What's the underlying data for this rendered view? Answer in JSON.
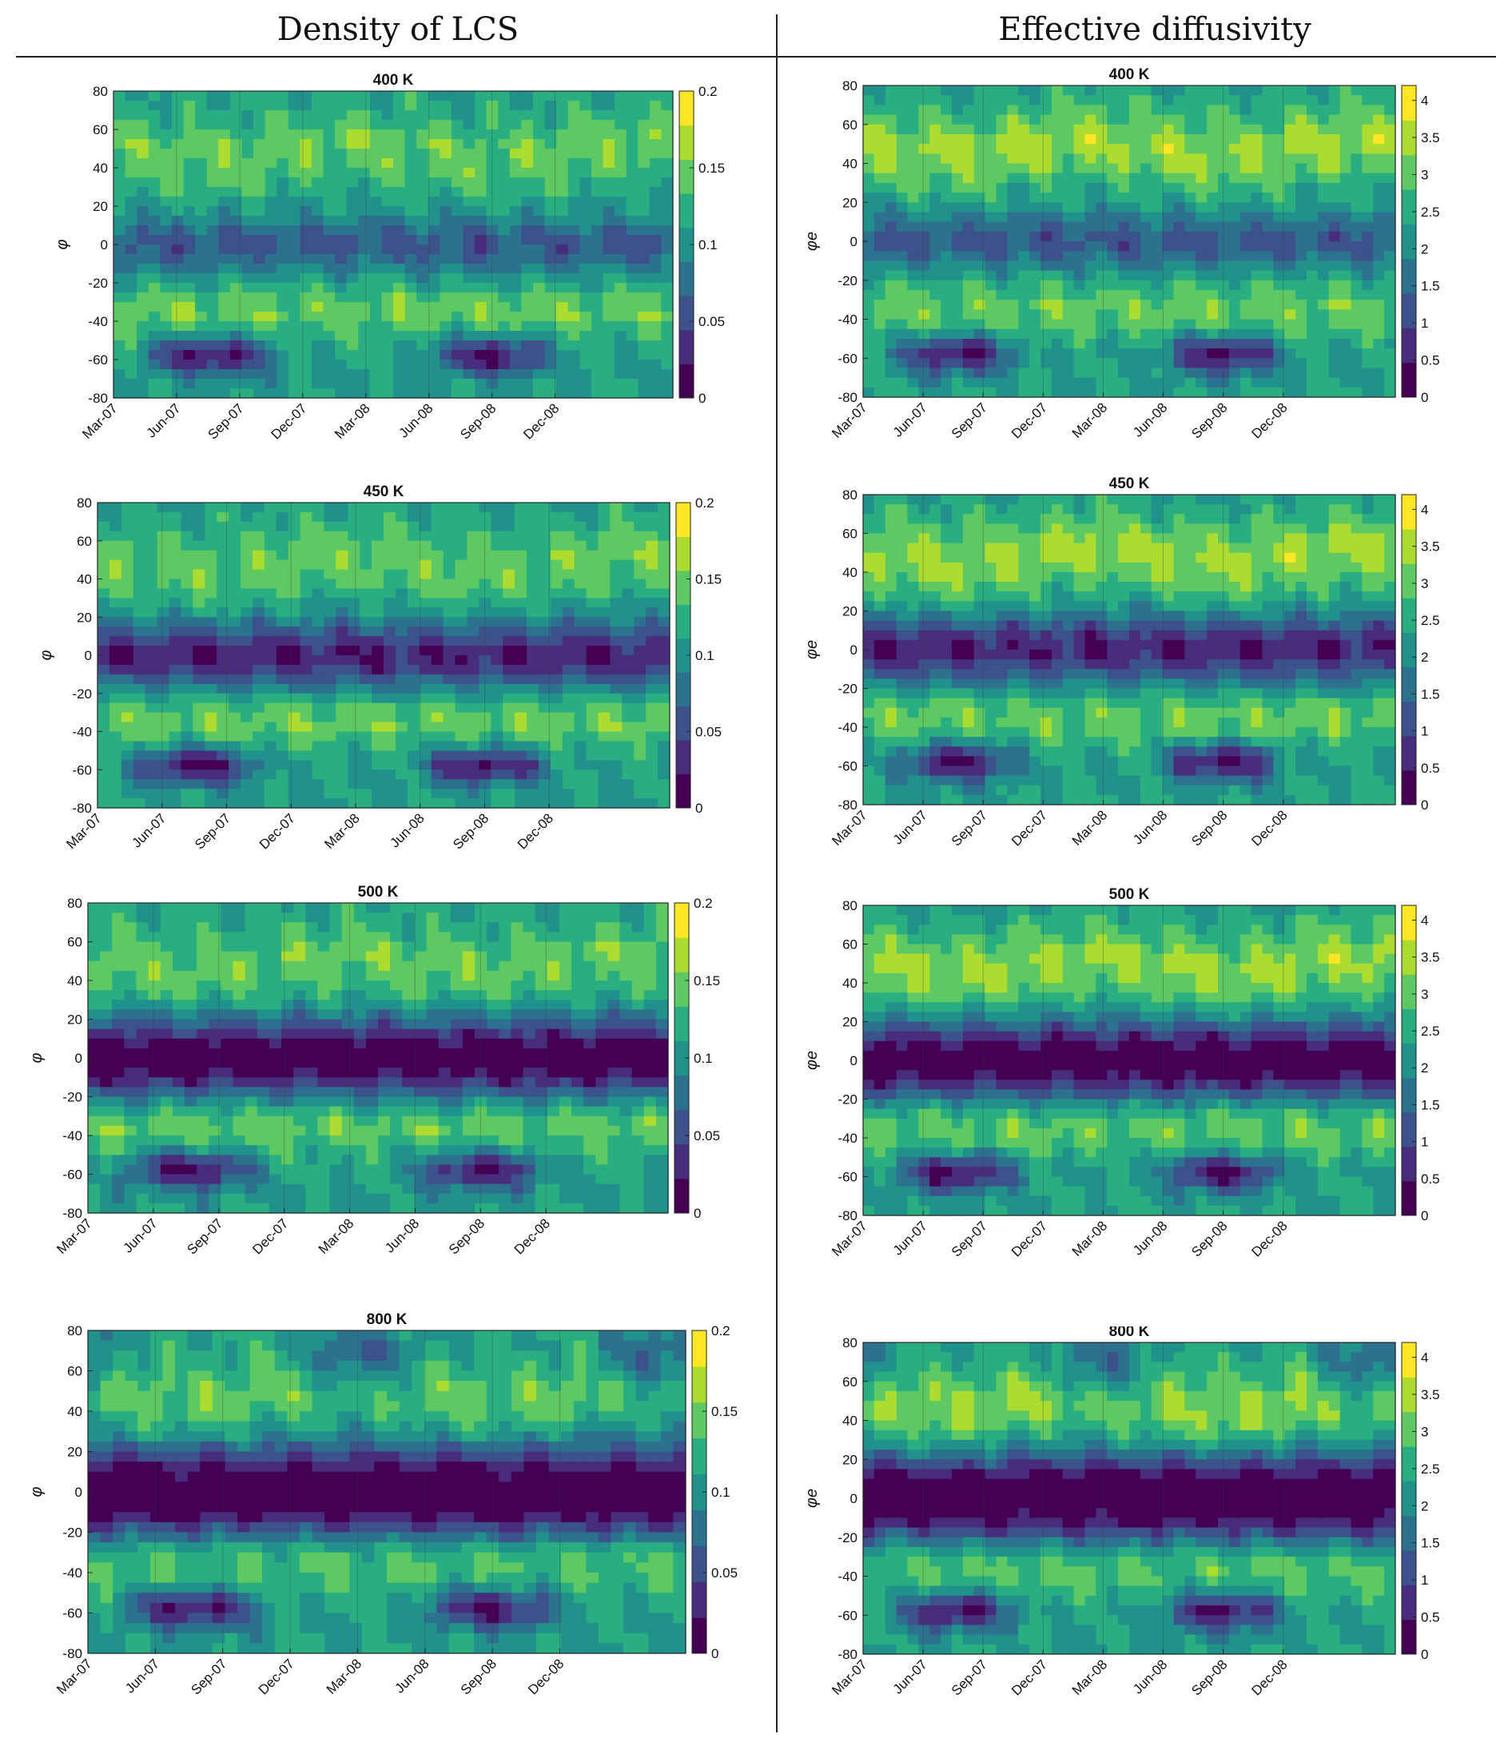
{
  "titles": {
    "left": "Density of LCS",
    "right": "Effective diffusivity"
  },
  "chart_data": [
    {
      "type": "heatmap",
      "column": "left",
      "title": "400 K",
      "ylabel": "φ",
      "x_ticks": [
        "Mar-07",
        "Jun-07",
        "Sep-07",
        "Dec-07",
        "Mar-08",
        "Jun-08",
        "Sep-08",
        "Dec-08"
      ],
      "y_ticks": [
        -80,
        -60,
        -40,
        -20,
        0,
        20,
        40,
        60,
        80
      ],
      "ylim": [
        -80,
        80
      ],
      "colorbar": {
        "ticks": [
          "0",
          "0.05",
          "0.1",
          "0.15",
          "0.2"
        ],
        "min": 0,
        "max": 0.2
      },
      "colormap": [
        "#440154",
        "#472d7b",
        "#3b528b",
        "#2c728e",
        "#21918c",
        "#28ae80",
        "#5ec962",
        "#addc30",
        "#fde725"
      ]
    },
    {
      "type": "heatmap",
      "column": "right",
      "title": "400 K",
      "ylabel": "φe",
      "x_ticks": [
        "Mar-07",
        "Jun-07",
        "Sep-07",
        "Dec-07",
        "Mar-08",
        "Jun-08",
        "Sep-08",
        "Dec-08"
      ],
      "y_ticks": [
        -80,
        -60,
        -40,
        -20,
        0,
        20,
        40,
        60,
        80
      ],
      "ylim": [
        -80,
        80
      ],
      "colorbar": {
        "ticks": [
          "0",
          "0.5",
          "1",
          "1.5",
          "2",
          "2.5",
          "3",
          "3.5",
          "4"
        ],
        "min": 0,
        "max": 4.2
      },
      "colormap": [
        "#440154",
        "#472d7b",
        "#3b528b",
        "#2c728e",
        "#21918c",
        "#28ae80",
        "#5ec962",
        "#addc30",
        "#fde725"
      ]
    },
    {
      "type": "heatmap",
      "column": "left",
      "title": "450 K",
      "ylabel": "φ",
      "x_ticks": [
        "Mar-07",
        "Jun-07",
        "Sep-07",
        "Dec-07",
        "Mar-08",
        "Jun-08",
        "Sep-08",
        "Dec-08"
      ],
      "y_ticks": [
        -80,
        -60,
        -40,
        -20,
        0,
        20,
        40,
        60,
        80
      ],
      "ylim": [
        -80,
        80
      ],
      "colorbar": {
        "ticks": [
          "0",
          "0.05",
          "0.1",
          "0.15",
          "0.2"
        ],
        "min": 0,
        "max": 0.2
      },
      "colormap": [
        "#440154",
        "#472d7b",
        "#3b528b",
        "#2c728e",
        "#21918c",
        "#28ae80",
        "#5ec962",
        "#addc30",
        "#fde725"
      ]
    },
    {
      "type": "heatmap",
      "column": "right",
      "title": "450 K",
      "ylabel": "φe",
      "x_ticks": [
        "Mar-07",
        "Jun-07",
        "Sep-07",
        "Dec-07",
        "Mar-08",
        "Jun-08",
        "Sep-08",
        "Dec-08"
      ],
      "y_ticks": [
        -80,
        -60,
        -40,
        -20,
        0,
        20,
        40,
        60,
        80
      ],
      "ylim": [
        -80,
        80
      ],
      "colorbar": {
        "ticks": [
          "0",
          "0.5",
          "1",
          "1.5",
          "2",
          "2.5",
          "3",
          "3.5",
          "4"
        ],
        "min": 0,
        "max": 4.2
      },
      "colormap": [
        "#440154",
        "#472d7b",
        "#3b528b",
        "#2c728e",
        "#21918c",
        "#28ae80",
        "#5ec962",
        "#addc30",
        "#fde725"
      ]
    },
    {
      "type": "heatmap",
      "column": "left",
      "title": "500 K",
      "ylabel": "φ",
      "x_ticks": [
        "Mar-07",
        "Jun-07",
        "Sep-07",
        "Dec-07",
        "Mar-08",
        "Jun-08",
        "Sep-08",
        "Dec-08"
      ],
      "y_ticks": [
        -80,
        -60,
        -40,
        -20,
        0,
        20,
        40,
        60,
        80
      ],
      "ylim": [
        -80,
        80
      ],
      "colorbar": {
        "ticks": [
          "0",
          "0.05",
          "0.1",
          "0.15",
          "0.2"
        ],
        "min": 0,
        "max": 0.2
      },
      "colormap": [
        "#440154",
        "#472d7b",
        "#3b528b",
        "#2c728e",
        "#21918c",
        "#28ae80",
        "#5ec962",
        "#addc30",
        "#fde725"
      ]
    },
    {
      "type": "heatmap",
      "column": "right",
      "title": "500 K",
      "ylabel": "φe",
      "x_ticks": [
        "Mar-07",
        "Jun-07",
        "Sep-07",
        "Dec-07",
        "Mar-08",
        "Jun-08",
        "Sep-08",
        "Dec-08"
      ],
      "y_ticks": [
        -80,
        -60,
        -40,
        -20,
        0,
        20,
        40,
        60,
        80
      ],
      "ylim": [
        -80,
        80
      ],
      "colorbar": {
        "ticks": [
          "0",
          "0.5",
          "1",
          "1.5",
          "2",
          "2.5",
          "3",
          "3.5",
          "4"
        ],
        "min": 0,
        "max": 4.2
      },
      "colormap": [
        "#440154",
        "#472d7b",
        "#3b528b",
        "#2c728e",
        "#21918c",
        "#28ae80",
        "#5ec962",
        "#addc30",
        "#fde725"
      ]
    },
    {
      "type": "heatmap",
      "column": "left",
      "title": "800 K",
      "ylabel": "φ",
      "x_ticks": [
        "Mar-07",
        "Jun-07",
        "Sep-07",
        "Dec-07",
        "Mar-08",
        "Jun-08",
        "Sep-08",
        "Dec-08"
      ],
      "y_ticks": [
        -80,
        -60,
        -40,
        -20,
        0,
        20,
        40,
        60,
        80
      ],
      "ylim": [
        -80,
        80
      ],
      "colorbar": {
        "ticks": [
          "0",
          "0.05",
          "0.1",
          "0.15",
          "0.2"
        ],
        "min": 0,
        "max": 0.2
      },
      "colormap": [
        "#440154",
        "#472d7b",
        "#3b528b",
        "#2c728e",
        "#21918c",
        "#28ae80",
        "#5ec962",
        "#addc30",
        "#fde725"
      ]
    },
    {
      "type": "heatmap",
      "column": "right",
      "title": "800 K",
      "ylabel": "φe",
      "x_ticks": [
        "Mar-07",
        "Jun-07",
        "Sep-07",
        "Dec-07",
        "Mar-08",
        "Jun-08",
        "Sep-08",
        "Dec-08"
      ],
      "y_ticks": [
        -80,
        -60,
        -40,
        -20,
        0,
        20,
        40,
        60,
        80
      ],
      "ylim": [
        -80,
        80
      ],
      "colorbar": {
        "ticks": [
          "0",
          "0.5",
          "1",
          "1.5",
          "2",
          "2.5",
          "3",
          "3.5",
          "4"
        ],
        "min": 0,
        "max": 4.2
      },
      "colormap": [
        "#440154",
        "#472d7b",
        "#3b528b",
        "#2c728e",
        "#21918c",
        "#28ae80",
        "#5ec962",
        "#addc30",
        "#fde725"
      ]
    }
  ]
}
